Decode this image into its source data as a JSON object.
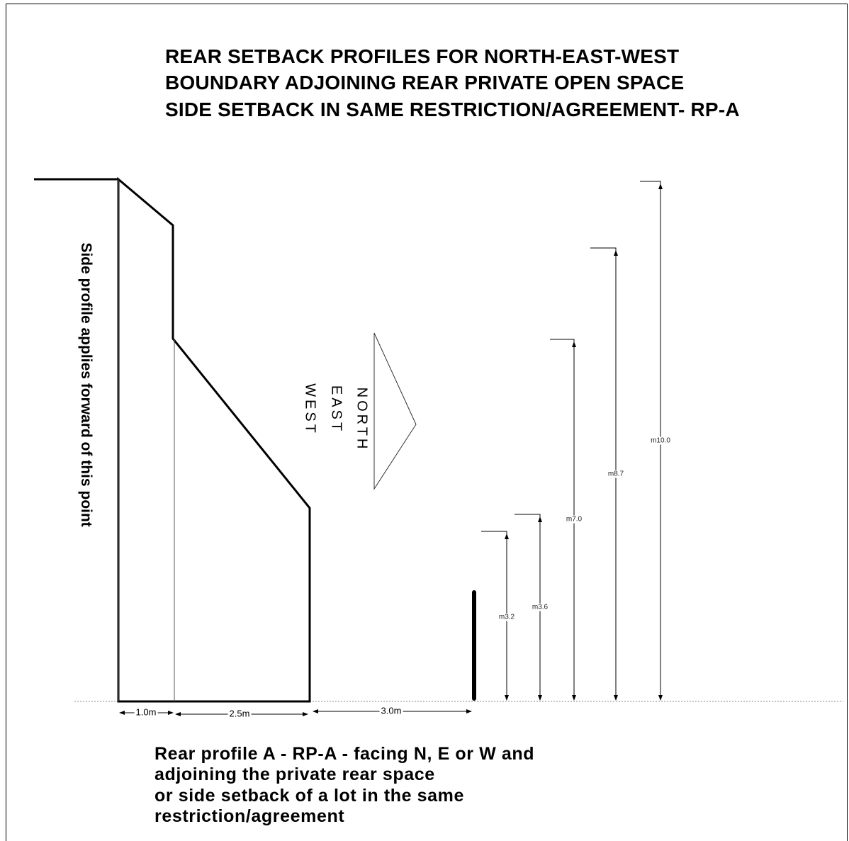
{
  "title": {
    "line1": "REAR SETBACK PROFILES FOR NORTH-EAST-WEST",
    "line2": "BOUNDARY ADJOINING REAR PRIVATE OPEN SPACE",
    "line3": "SIDE SETBACK IN SAME RESTRICTION/AGREEMENT- RP-A"
  },
  "side_label": "Side profile applies forward of this point",
  "compass": {
    "north": "NORTH",
    "east": "EAST",
    "west": "WEST"
  },
  "height_dimensions": [
    "m3.2",
    "m3.6",
    "m7.0",
    "m8.7",
    "m10.0"
  ],
  "horizontal_dimensions": [
    "1.0m",
    "2.5m",
    "3.0m"
  ],
  "caption": {
    "line1": "Rear profile A  -  RP-A - facing N, E or W and",
    "line2": "adjoining the private rear space",
    "line3": "or side setback of a lot in the same",
    "line4": "restriction/agreement"
  }
}
